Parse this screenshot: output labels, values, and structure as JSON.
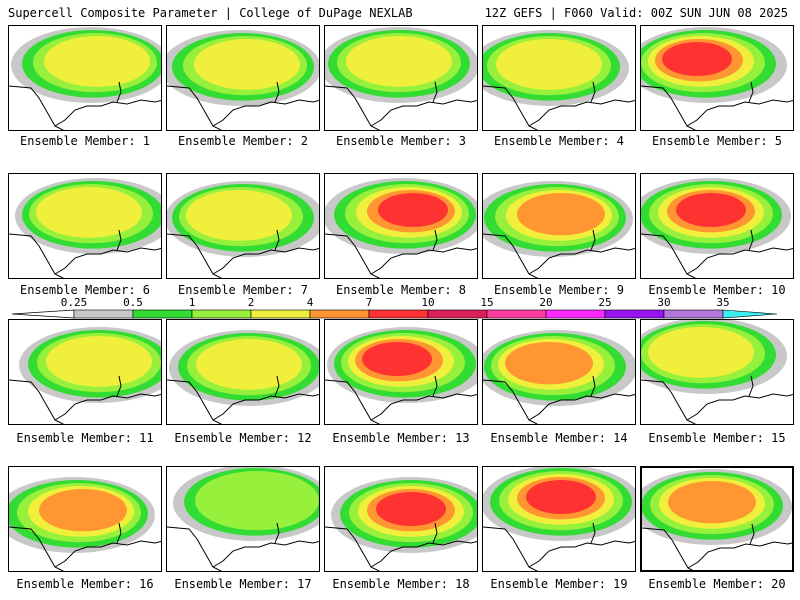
{
  "header": {
    "left_title": "Supercell Composite Parameter | College of DuPage NEXLAB",
    "right_title": "12Z GEFS | F060 Valid: 00Z SUN JUN 08 2025"
  },
  "members": [
    {
      "label": "Ensemble Member: 1",
      "intensity": 0.55,
      "selected": false
    },
    {
      "label": "Ensemble Member: 2",
      "intensity": 0.45,
      "selected": false
    },
    {
      "label": "Ensemble Member: 3",
      "intensity": 0.5,
      "selected": false
    },
    {
      "label": "Ensemble Member: 4",
      "intensity": 0.55,
      "selected": false
    },
    {
      "label": "Ensemble Member: 5",
      "intensity": 0.75,
      "selected": false
    },
    {
      "label": "Ensemble Member: 6",
      "intensity": 0.5,
      "selected": false
    },
    {
      "label": "Ensemble Member: 7",
      "intensity": 0.55,
      "selected": false
    },
    {
      "label": "Ensemble Member: 8",
      "intensity": 0.7,
      "selected": false
    },
    {
      "label": "Ensemble Member: 9",
      "intensity": 0.65,
      "selected": false
    },
    {
      "label": "Ensemble Member: 10",
      "intensity": 0.8,
      "selected": false
    },
    {
      "label": "Ensemble Member: 11",
      "intensity": 0.55,
      "selected": false
    },
    {
      "label": "Ensemble Member: 12",
      "intensity": 0.5,
      "selected": false
    },
    {
      "label": "Ensemble Member: 13",
      "intensity": 0.7,
      "selected": false
    },
    {
      "label": "Ensemble Member: 14",
      "intensity": 0.6,
      "selected": false
    },
    {
      "label": "Ensemble Member: 15",
      "intensity": 0.45,
      "selected": false
    },
    {
      "label": "Ensemble Member: 16",
      "intensity": 0.6,
      "selected": false
    },
    {
      "label": "Ensemble Member: 17",
      "intensity": 0.4,
      "selected": false
    },
    {
      "label": "Ensemble Member: 18",
      "intensity": 0.75,
      "selected": false
    },
    {
      "label": "Ensemble Member: 19",
      "intensity": 0.7,
      "selected": false
    },
    {
      "label": "Ensemble Member: 20",
      "intensity": 0.6,
      "selected": true
    }
  ],
  "colorbar": {
    "ticks": [
      "0.25",
      "0.5",
      "1",
      "2",
      "4",
      "7",
      "10",
      "15",
      "20",
      "25",
      "30",
      "35"
    ],
    "colors": [
      "#c8c8c8",
      "#32dc32",
      "#96f03c",
      "#f0f03c",
      "#ff9632",
      "#ff3232",
      "#dc1e5a",
      "#ff3ca0",
      "#ff28ff",
      "#9614f0",
      "#b478dc",
      "#3cf0f0"
    ]
  },
  "colors": {
    "coast": "#000000",
    "outline": "#000000"
  }
}
